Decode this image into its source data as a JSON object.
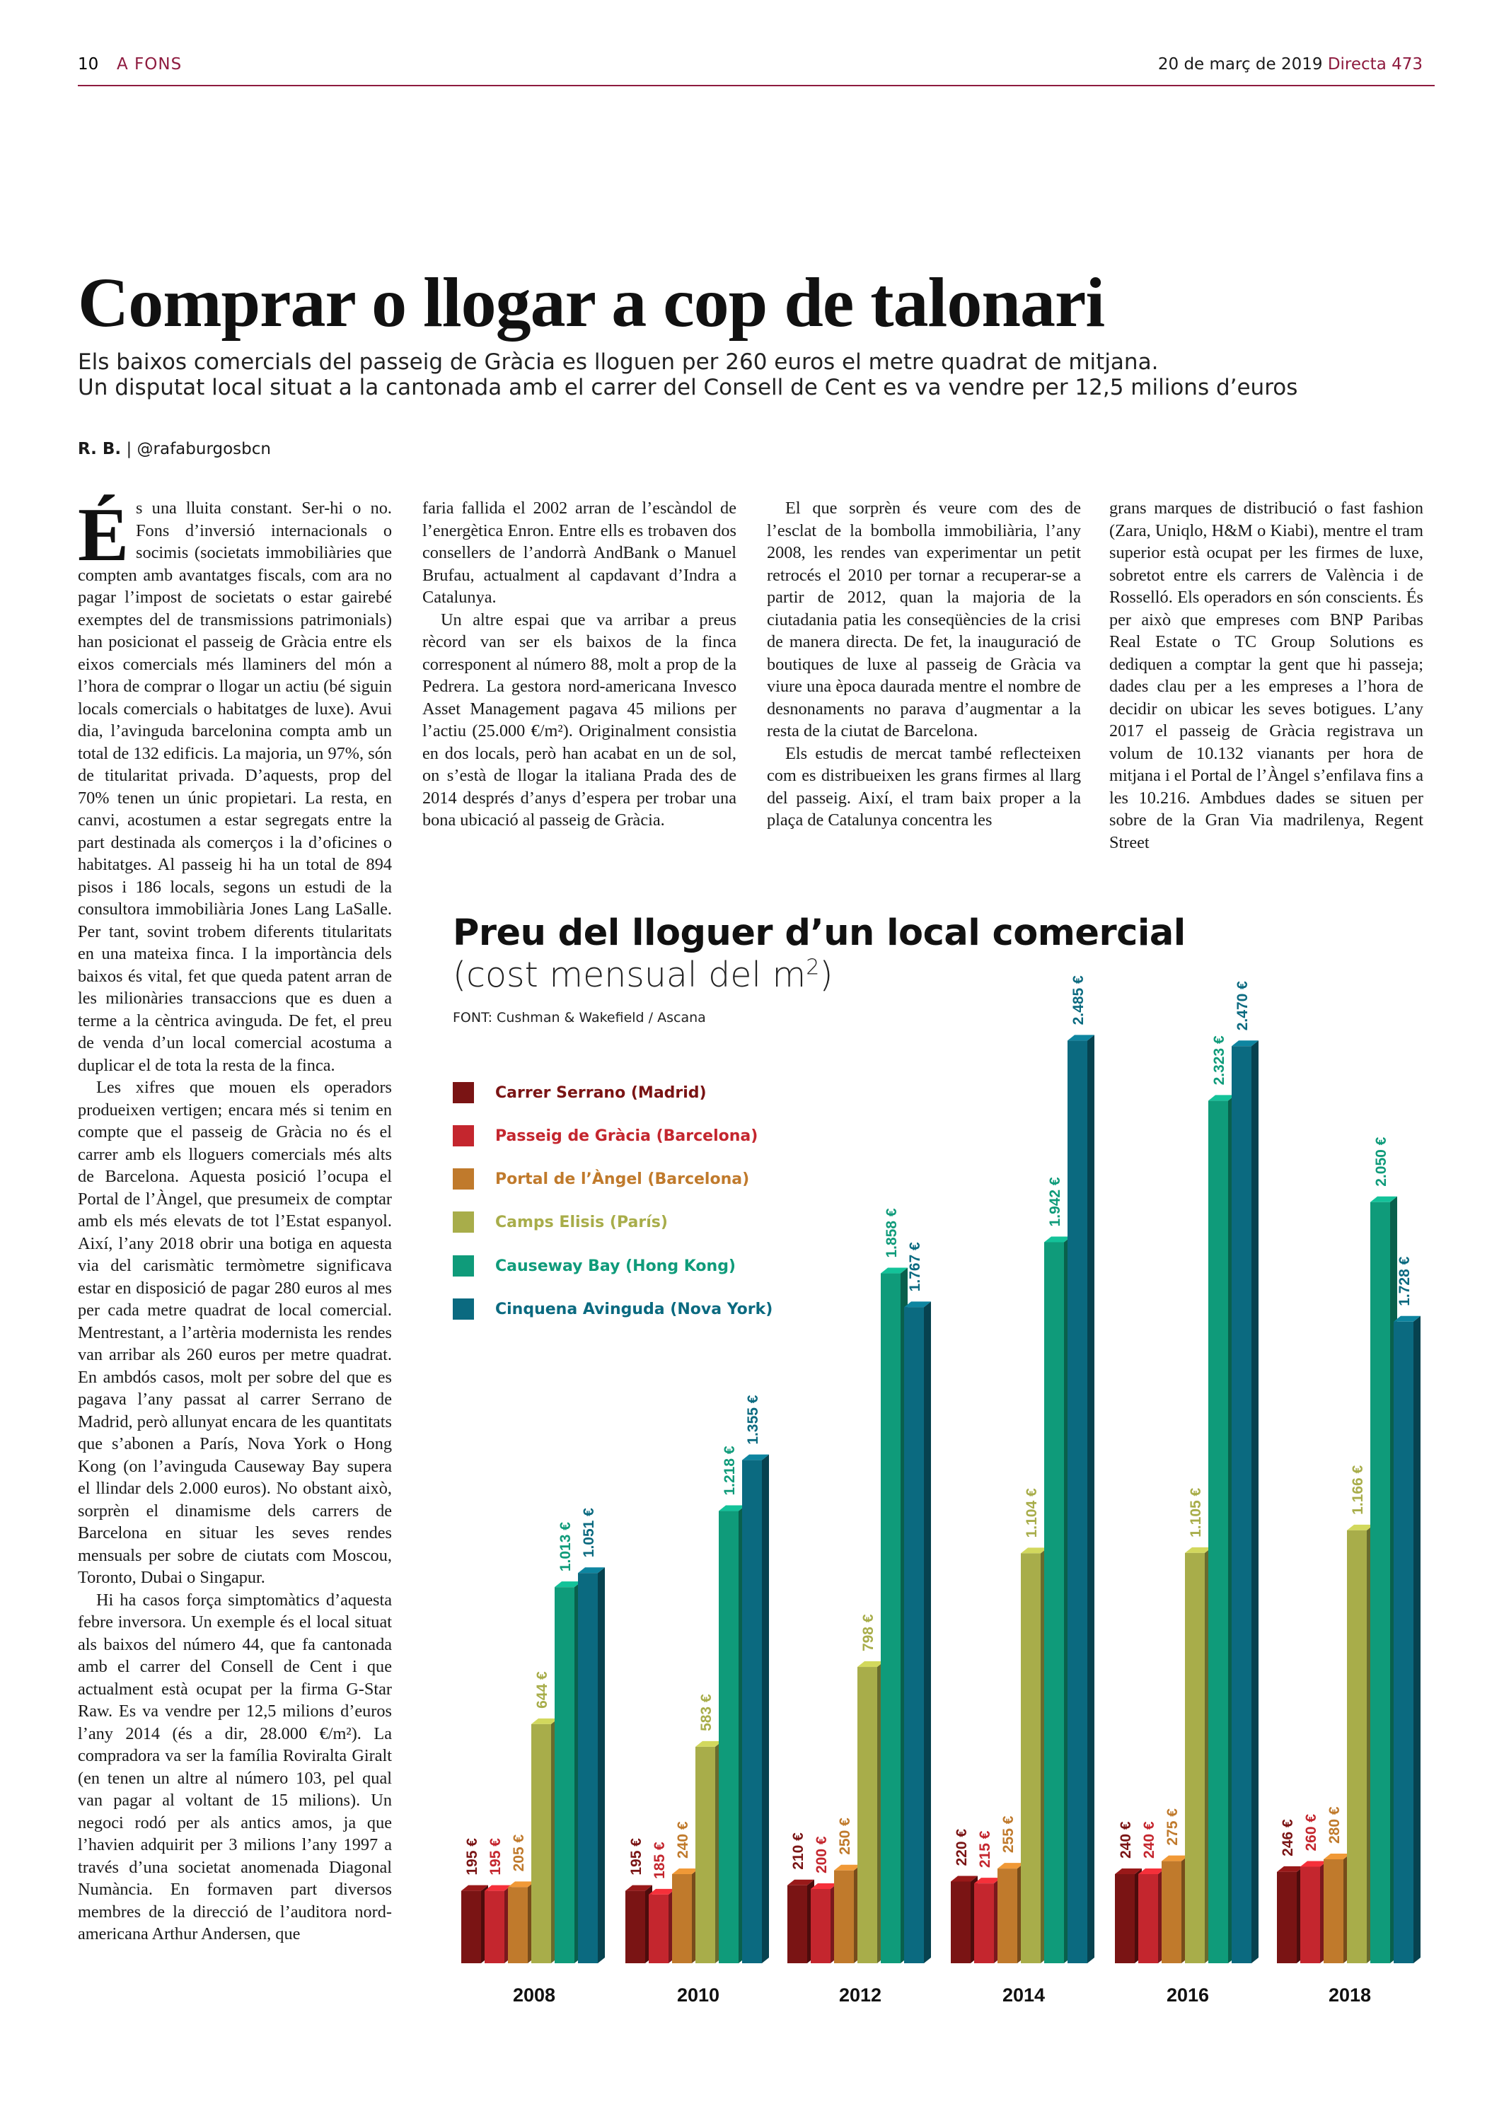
{
  "header": {
    "page_number": "10",
    "section": "A FONS",
    "date": "20 de març de 2019",
    "issue": "Directa 473"
  },
  "article": {
    "headline": "Comprar o llogar a cop de talonari",
    "subhead_lines": [
      "Els baixos comercials del passeig de Gràcia es lloguen per 260 euros el metre quadrat de mitjana.",
      "Un disputat local situat a la cantonada amb el carrer del Consell de Cent es va vendre per 12,5 milions d’euros"
    ],
    "byline_author": "R. B.",
    "byline_handle": " | @rafaburgosbcn",
    "dropcap": "É",
    "col1": [
      "s una lluita constant. Ser-hi o no. Fons d’inversió internacionals o socimis (societats immobiliàries que compten amb avantatges fiscals, com ara no pagar l’impost de societats o estar gairebé exemptes del de transmissions patrimonials) han posicionat el passeig de Gràcia entre els eixos comercials més llaminers del món a l’hora de comprar o llogar un actiu (bé siguin locals comercials o habitatges de luxe). Avui dia, l’avinguda barcelonina compta amb un total de 132 edificis. La majoria, un 97%, són de titularitat privada. D’aquests, prop del 70% tenen un únic propietari. La resta, en canvi, acostumen a estar segregats entre la part destinada als comerços i la d’oficines o habitatges. Al passeig hi ha un total de 894 pisos i 186 locals, segons un estudi de la consultora immobiliària Jones Lang LaSalle. Per tant, sovint trobem diferents titularitats en una mateixa finca. I la importància dels baixos és vital, fet que queda patent arran de les milionàries transaccions que es duen a terme a la cèntrica avinguda. De fet, el preu de venda d’un local comercial acostuma a duplicar el de tota la resta de la finca.",
      "Les xifres que mouen els operadors produeixen vertigen; encara més si tenim en compte que el passeig de Gràcia no és el carrer amb els lloguers comercials més alts de Barcelona. Aquesta posició l’ocupa el Portal de l’Àngel, que presumeix de comptar amb els més elevats de tot l’Estat espanyol. Així, l’any 2018 obrir una botiga en aquesta via del carismàtic termòmetre significava estar en disposició de pagar 280 euros al mes per cada metre quadrat de local comercial. Mentrestant, a l’artèria modernista les rendes van arribar als 260 euros per metre quadrat. En ambdós casos, molt per sobre del que es pagava l’any passat al carrer Serrano de Madrid, però allunyat encara de les quantitats que s’abonen a París, Nova York o Hong Kong (on l’avinguda Causeway Bay supera el llindar dels 2.000 euros). No obstant això, sorprèn el dinamisme dels carrers de Barcelona en situar les seves rendes mensuals per sobre de ciutats com Moscou, Toronto, Dubai o Singapur.",
      "Hi ha casos força simptomàtics d’aquesta febre inversora. Un exemple és el local situat als baixos del número 44, que fa cantonada amb el carrer del Consell de Cent i que actualment està ocupat per la firma G-Star Raw. Es va vendre per 12,5 milions d’euros l’any 2014 (és a dir, 28.000 €/m²). La compradora va ser la família Roviralta Giralt (en tenen un altre al número 103, pel qual van pagar al voltant de 15 milions). Un negoci rodó per als antics amos, ja que l’havien adquirit per 3 milions l’any 1997 a través d’una societat anomenada Diagonal Numància. En formaven part diversos membres de la direcció de l’auditora nord-americana Arthur Andersen, que"
    ],
    "col2": [
      "faria fallida el 2002 arran de l’escàndol de l’energètica Enron. Entre ells es trobaven dos consellers de l’andorrà AndBank o Manuel Brufau, actualment al capdavant d’Indra a Catalunya.",
      "Un altre espai que va arribar a preus rècord van ser els baixos de la finca corresponent al número 88, molt a prop de la Pedrera. La gestora nord-americana Invesco Asset Management pagava 45 milions per l’actiu (25.000 €/m²). Originalment consistia en dos locals, però han acabat en un de sol, on s’està de llogar la italiana Prada des de 2014 després d’anys d’espera per trobar una bona ubicació al passeig de Gràcia."
    ],
    "col3": [
      "El que sorprèn és veure com des de l’esclat de la bombolla immobiliària, l’any 2008, les rendes van experimentar un petit retrocés el 2010 per tornar a recuperar-se a partir de 2012, quan la majoria de la ciutadania patia les conseqüències de la crisi de manera directa. De fet, la inauguració de boutiques de luxe al passeig de Gràcia va viure una època daurada mentre el nombre de desnonaments no parava d’augmentar a la resta de la ciutat de Barcelona.",
      "Els estudis de mercat també reflecteixen com es distribueixen les grans firmes al llarg del passeig. Així, el tram baix proper a la plaça de Catalunya concentra les"
    ],
    "col4": [
      "grans marques de distribució o fast fashion (Zara, Uniqlo, H&M o Kiabi), mentre el tram superior està ocupat per les firmes de luxe, sobretot entre els carrers de València i de Rosselló. Els operadors en són conscients. És per això que empreses com BNP Paribas Real Estate o TC Group Solutions es dediquen a comptar la gent que hi passeja; dades clau per a les empreses a l’hora de decidir on ubicar les seves botigues. L’any 2017 el passeig de Gràcia registrava un volum de 10.132 vianants per hora de mitjana i el Portal de l’Àngel s’enfilava fins a les 10.216. Ambdues dades se situen per sobre de la Gran Via madrilenya, Regent Street"
    ]
  },
  "chart": {
    "title": "Preu del lloguer d’un local comercial",
    "subtitle_prefix": "(cost mensual del m",
    "subtitle_sup": "2",
    "subtitle_suffix": ")",
    "source": "FONT: Cushman & Wakefield / Ascana"
  },
  "chart_data": {
    "type": "bar",
    "title": "Preu del lloguer d’un local comercial",
    "subtitle": "(cost mensual del m2)",
    "categories": [
      "2008",
      "2010",
      "2012",
      "2014",
      "2016",
      "2018"
    ],
    "unit": "€",
    "legend_position": "top-left",
    "grid": false,
    "series": [
      {
        "name": "Carrer Serrano (Madrid)",
        "color": "#7a1414",
        "values": [
          195,
          195,
          210,
          220,
          240,
          246
        ],
        "labels": [
          "195 €",
          "195 €",
          "210 €",
          "220 €",
          "240 €",
          "246 €"
        ]
      },
      {
        "name": "Passeig de Gràcia (Barcelona)",
        "color": "#c4262e",
        "values": [
          195,
          185,
          200,
          215,
          240,
          260
        ],
        "labels": [
          "195 €",
          "185 €",
          "200 €",
          "215 €",
          "240 €",
          "260 €"
        ]
      },
      {
        "name": "Portal de l’Àngel (Barcelona)",
        "color": "#c07a2c",
        "values": [
          205,
          240,
          250,
          255,
          275,
          280
        ],
        "labels": [
          "205 €",
          "240 €",
          "250 €",
          "255 €",
          "275 €",
          "280 €"
        ]
      },
      {
        "name": "Camps Elisis (París)",
        "color": "#a8ad4a",
        "values": [
          644,
          583,
          798,
          1104,
          1105,
          1166
        ],
        "labels": [
          "644 €",
          "583 €",
          "798 €",
          "1.104 €",
          "1.105 €",
          "1.166 €"
        ]
      },
      {
        "name": "Causeway Bay (Hong Kong)",
        "color": "#0f9b7a",
        "values": [
          1013,
          1218,
          1858,
          1942,
          2323,
          2050
        ],
        "labels": [
          "1.013 €",
          "1.218 €",
          "1.858 €",
          "1.942 €",
          "2.323 €",
          "2.050 €"
        ]
      },
      {
        "name": "Cinquena Avinguda (Nova York)",
        "color": "#0b6a80",
        "values": [
          1051,
          1355,
          1767,
          2485,
          2470,
          1728
        ],
        "labels": [
          "1.051 €",
          "1.355 €",
          "1.767 €",
          "2.485 €",
          "2.470 €",
          "1.728 €"
        ]
      }
    ]
  }
}
